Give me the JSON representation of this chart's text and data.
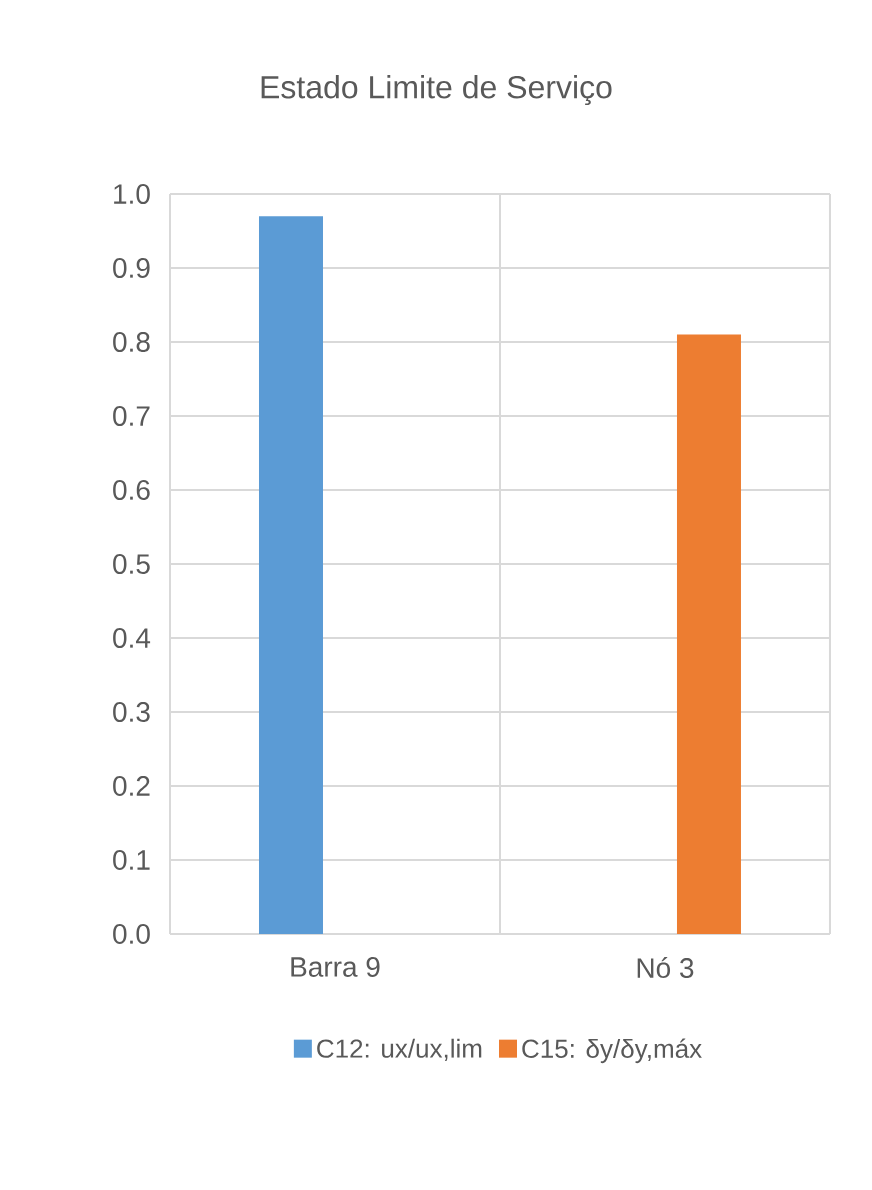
{
  "chart_data": {
    "type": "bar",
    "title": "Estado Limite de Serviço",
    "categories": [
      "Barra 9",
      "Nó 3"
    ],
    "series": [
      {
        "name": "C12: ux/ux,lim",
        "color": "#5b9bd5",
        "values": [
          0.97,
          null
        ]
      },
      {
        "name": "C15: δy/δy,máx",
        "color": "#ed7d31",
        "values": [
          null,
          0.81
        ]
      }
    ],
    "ylim": [
      0,
      1
    ],
    "yticks": [
      {
        "value": 0,
        "label": "0.0"
      },
      {
        "value": 0.1,
        "label": "0.1"
      },
      {
        "value": 0.2,
        "label": "0.2"
      },
      {
        "value": 0.3,
        "label": "0.3"
      },
      {
        "value": 0.4,
        "label": "0.4"
      },
      {
        "value": 0.5,
        "label": "0.5"
      },
      {
        "value": 0.6,
        "label": "0.6"
      },
      {
        "value": 0.7,
        "label": "0.7"
      },
      {
        "value": 0.8,
        "label": "0.8"
      },
      {
        "value": 0.9,
        "label": "0.9"
      },
      {
        "value": 1,
        "label": "1.0"
      }
    ],
    "grid": true,
    "legend": "bottom"
  }
}
